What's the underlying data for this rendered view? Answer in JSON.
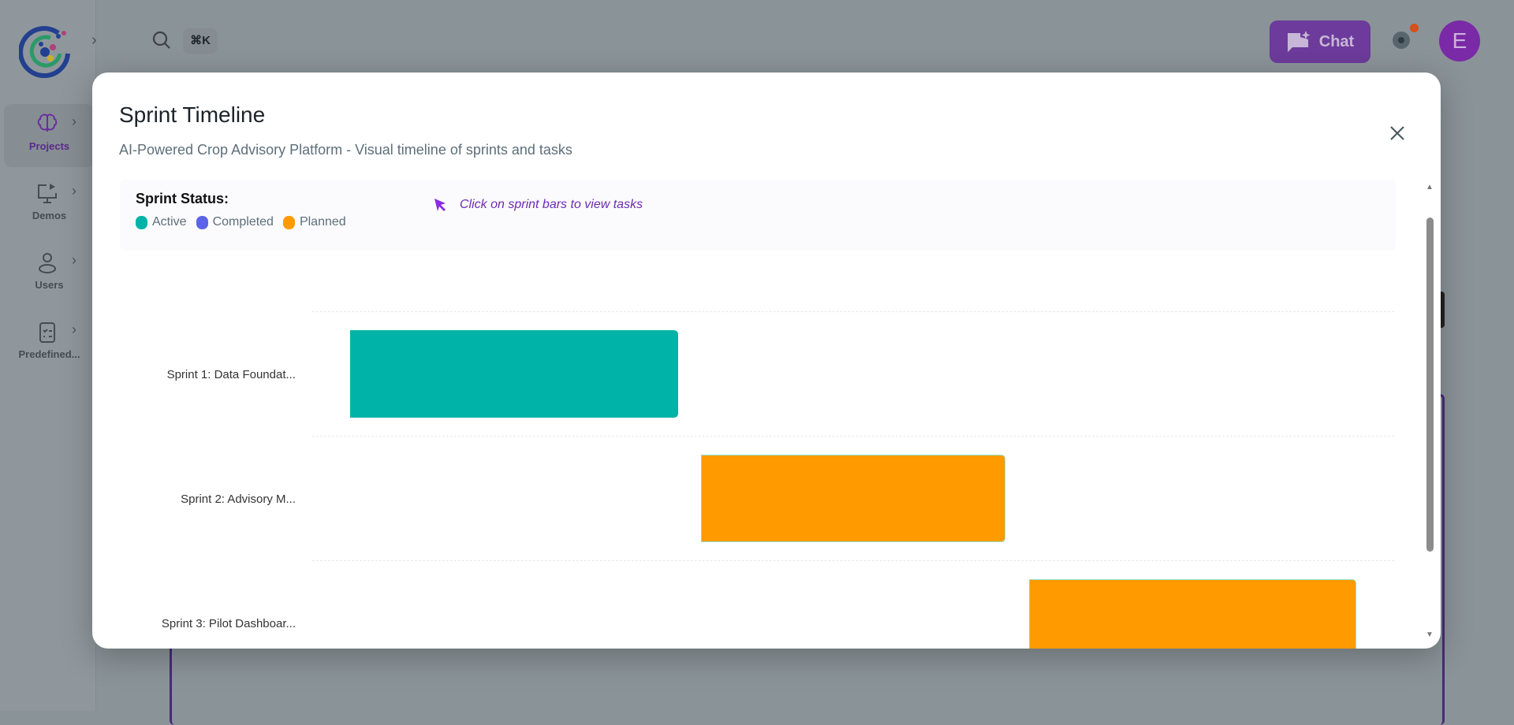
{
  "topbar": {
    "shortcut": "⌘K",
    "chat_label": "Chat",
    "avatar_initial": "E"
  },
  "sidebar": {
    "items": [
      {
        "label": "Projects",
        "icon": "brain-icon",
        "active": true
      },
      {
        "label": "Demos",
        "icon": "monitor-play-icon"
      },
      {
        "label": "Users",
        "icon": "user-icon"
      },
      {
        "label": "Predefined...",
        "icon": "clipboard-list-icon"
      }
    ]
  },
  "modal": {
    "title": "Sprint Timeline",
    "subtitle": "AI-Powered Crop Advisory Platform - Visual timeline of sprints and tasks",
    "legend_title": "Sprint Status:",
    "legend": [
      {
        "label": "Active",
        "color": "#00b3a8"
      },
      {
        "label": "Completed",
        "color": "#5b63e8"
      },
      {
        "label": "Planned",
        "color": "#ff9b00"
      }
    ],
    "hint": "Click on sprint bars to view tasks"
  },
  "chart_data": {
    "type": "bar",
    "orientation": "horizontal-timeline",
    "categories": [
      "Sprint 1: Data Foundat...",
      "Sprint 2: Advisory M...",
      "Sprint 3: Pilot Dashboar..."
    ],
    "status": [
      "Active",
      "Planned",
      "Planned"
    ],
    "grid": true
  }
}
